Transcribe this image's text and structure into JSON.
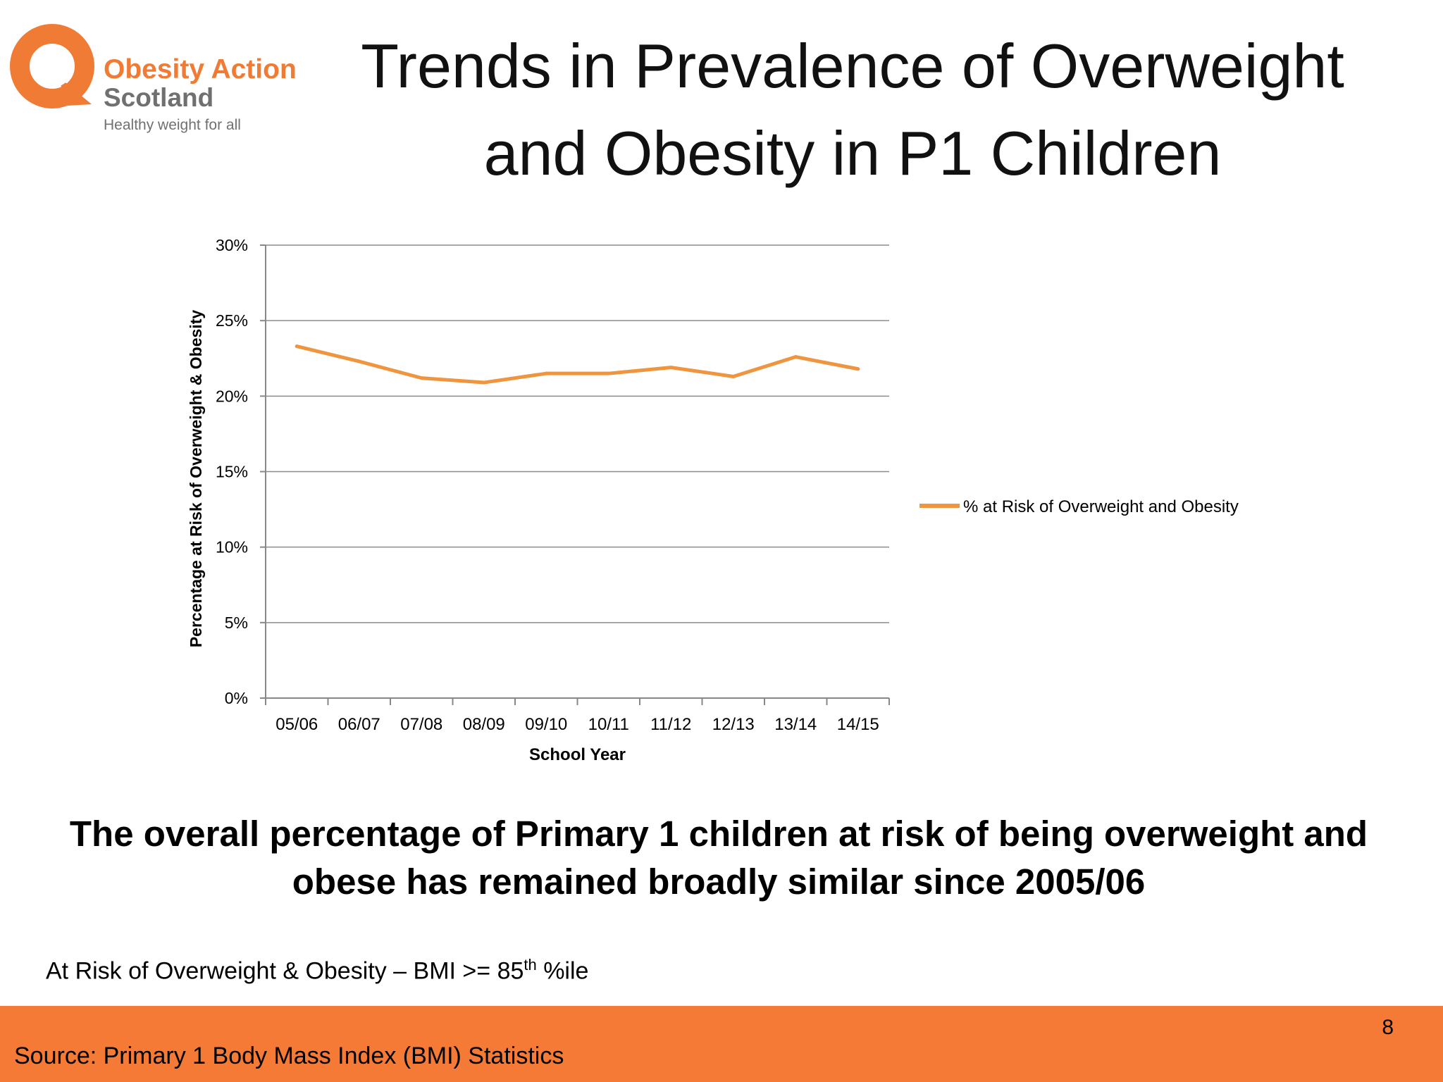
{
  "logo": {
    "line1": "Obesity Action",
    "line2": "Scotland",
    "line3": "Healthy weight for all",
    "brand_color": "#f07b35",
    "text_color": "#707070",
    "icon": "obesity-action-q-logo-icon"
  },
  "title": "Trends in Prevalence of Overweight and Obesity in P1 Children",
  "chart_data": {
    "type": "line",
    "title": "",
    "xlabel": "School Year",
    "ylabel": "Percentage at Risk of Overweight & Obesity",
    "categories": [
      "05/06",
      "06/07",
      "07/08",
      "08/09",
      "09/10",
      "10/11",
      "11/12",
      "12/13",
      "13/14",
      "14/15"
    ],
    "series": [
      {
        "name": "% at Risk of Overweight and Obesity",
        "values": [
          23.3,
          22.3,
          21.2,
          20.9,
          21.5,
          21.5,
          21.9,
          21.3,
          22.6,
          21.8
        ],
        "color": "#f0953f"
      }
    ],
    "ylim": [
      0,
      30
    ],
    "yticks": [
      0,
      5,
      10,
      15,
      20,
      25,
      30
    ],
    "ytick_labels": [
      "0%",
      "5%",
      "10%",
      "15%",
      "20%",
      "25%",
      "30%"
    ],
    "grid": true,
    "legend_position": "right"
  },
  "headline": "The overall percentage of Primary 1 children at risk of being overweight and obese has remained broadly similar since 2005/06",
  "footnote": {
    "prefix": "At Risk of Overweight & Obesity – BMI >= 85",
    "superscript": "th",
    "suffix": " %ile"
  },
  "footer": {
    "page_number": "8",
    "source": "Source: Primary 1 Body Mass Index (BMI) Statistics",
    "color": "#f47a35"
  }
}
